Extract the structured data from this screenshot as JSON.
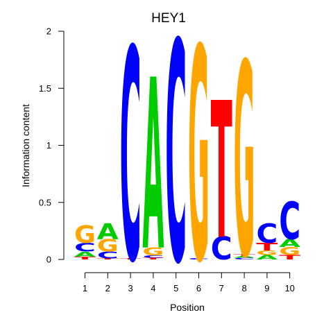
{
  "chart_data": {
    "type": "sequence-logo",
    "title": "HEY1",
    "xlabel": "Position",
    "ylabel": "Information content",
    "ylim": [
      0,
      2
    ],
    "y_ticks": [
      "0",
      "0.5",
      "1",
      "1.5",
      "2"
    ],
    "y_tick_values": [
      0,
      0.5,
      1,
      1.5,
      2
    ],
    "positions": [
      "1",
      "2",
      "3",
      "4",
      "5",
      "6",
      "7",
      "8",
      "9",
      "10"
    ],
    "colors": {
      "A": "#00cc00",
      "C": "#0000ff",
      "G": "#ffa500",
      "T": "#ff0000"
    },
    "columns": [
      [
        {
          "base": "T",
          "height": 0.025
        },
        {
          "base": "A",
          "height": 0.045
        },
        {
          "base": "C",
          "height": 0.075
        },
        {
          "base": "G",
          "height": 0.155
        }
      ],
      [
        {
          "base": "T",
          "height": 0.01
        },
        {
          "base": "C",
          "height": 0.06
        },
        {
          "base": "G",
          "height": 0.11
        },
        {
          "base": "A",
          "height": 0.14
        }
      ],
      [
        {
          "base": "T",
          "height": 0.01
        },
        {
          "base": "C",
          "height": 1.86
        }
      ],
      [
        {
          "base": "T",
          "height": 0.015
        },
        {
          "base": "C",
          "height": 0.02
        },
        {
          "base": "G",
          "height": 0.07
        },
        {
          "base": "A",
          "height": 1.5
        }
      ],
      [
        {
          "base": "C",
          "height": 1.93
        }
      ],
      [
        {
          "base": "C",
          "height": 0.01
        },
        {
          "base": "G",
          "height": 1.87
        }
      ],
      [
        {
          "base": "C",
          "height": 0.2
        },
        {
          "base": "T",
          "height": 1.2
        }
      ],
      [
        {
          "base": "C",
          "height": 0.015
        },
        {
          "base": "A",
          "height": 0.015
        },
        {
          "base": "T",
          "height": 0.015
        },
        {
          "base": "G",
          "height": 1.7
        }
      ],
      [
        {
          "base": "A",
          "height": 0.04
        },
        {
          "base": "G",
          "height": 0.04
        },
        {
          "base": "T",
          "height": 0.065
        },
        {
          "base": "C",
          "height": 0.17
        }
      ],
      [
        {
          "base": "T",
          "height": 0.04
        },
        {
          "base": "G",
          "height": 0.07
        },
        {
          "base": "A",
          "height": 0.07
        },
        {
          "base": "C",
          "height": 0.33
        }
      ]
    ]
  }
}
